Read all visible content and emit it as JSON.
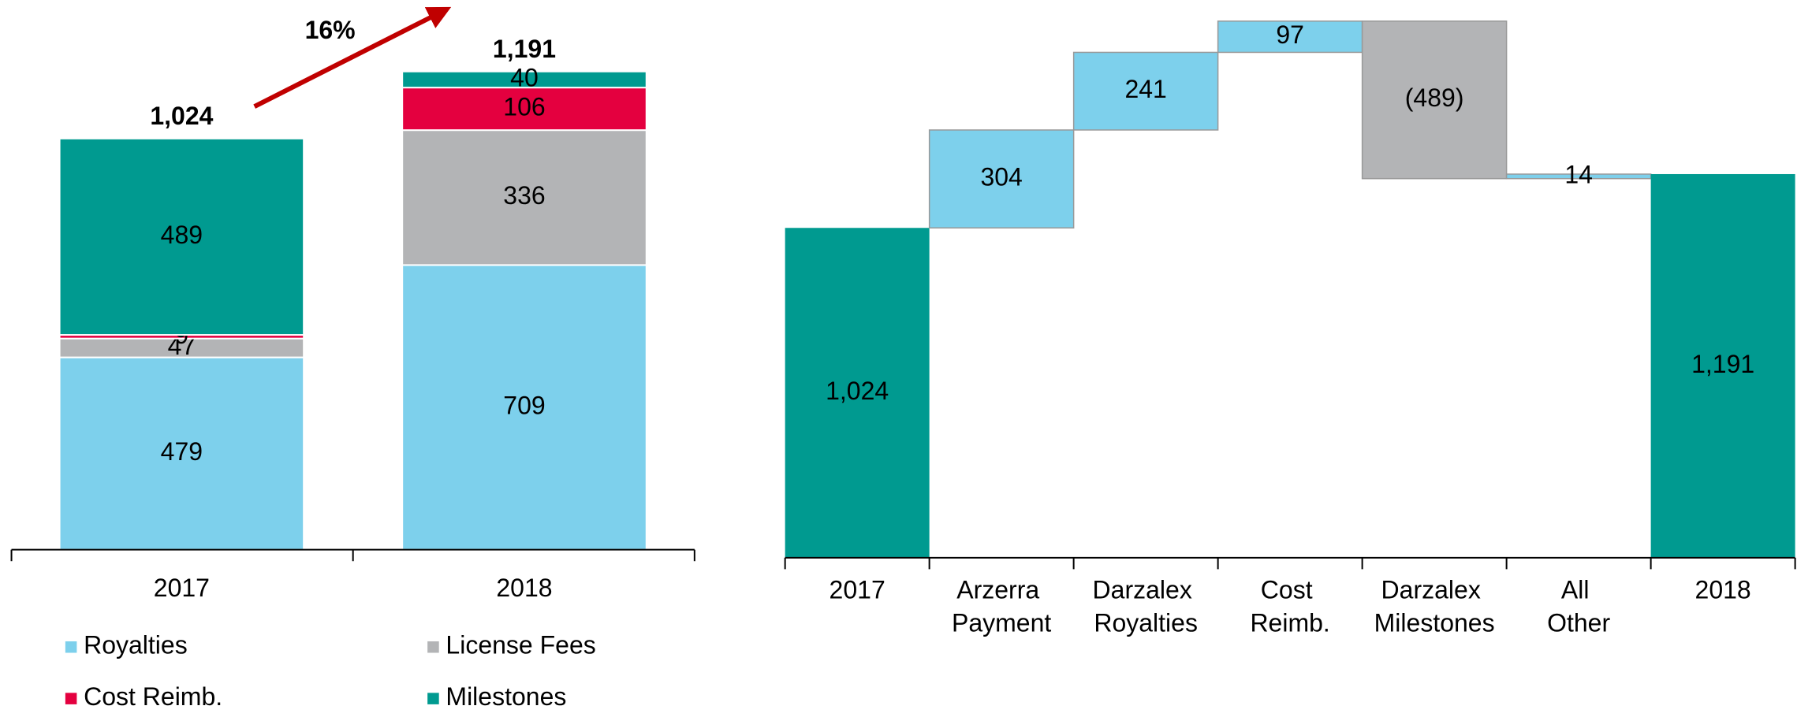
{
  "chart_data": [
    {
      "type": "stacked_bar",
      "categories": [
        "2017",
        "2018"
      ],
      "series": [
        {
          "name": "Royalties",
          "color": "#7dd0ec",
          "values": [
            479,
            709
          ]
        },
        {
          "name": "License Fees",
          "color": "#b3b4b6",
          "values": [
            47,
            336
          ]
        },
        {
          "name": "Cost Reimb.",
          "color": "#e4003f",
          "values": [
            9,
            106
          ]
        },
        {
          "name": "Milestones",
          "color": "#009a90",
          "values": [
            489,
            40
          ]
        }
      ],
      "totals": [
        1024,
        1191
      ],
      "total_labels": [
        "1,024",
        "1,191"
      ],
      "annotation": "16%",
      "annotation_color": "#c00000"
    },
    {
      "type": "waterfall",
      "categories": [
        "2017",
        "Arzerra Payment",
        "Darzalex Royalties",
        "Cost Reimb.",
        "Darzalex Milestones",
        "All Other",
        "2018"
      ],
      "values": [
        1024,
        304,
        241,
        97,
        -489,
        14,
        1191
      ],
      "value_labels": [
        "1,024",
        "304",
        "241",
        "97",
        "(489)",
        "14",
        "1,191"
      ],
      "measure": [
        "total",
        "relative",
        "relative",
        "relative",
        "relative",
        "relative",
        "total"
      ],
      "total_color": "#009a90",
      "increase_color": "#7dd0ec",
      "decrease_color": "#b3b4b6"
    }
  ]
}
